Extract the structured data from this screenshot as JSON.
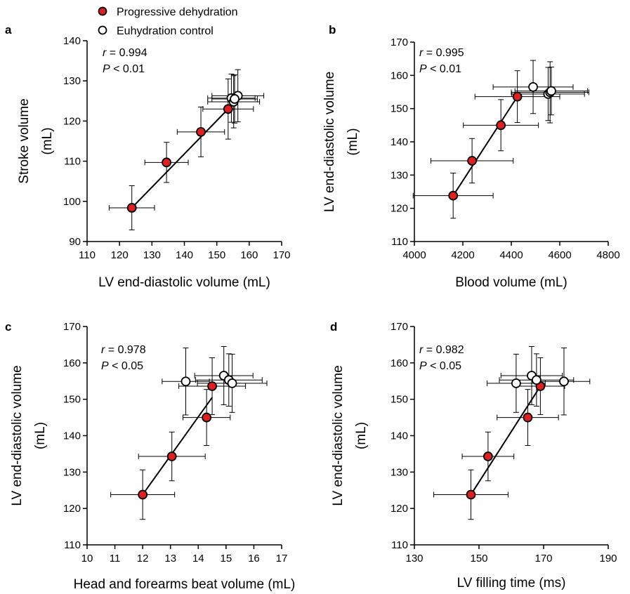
{
  "legend": [
    {
      "label": "Progressive dehydration",
      "marker": "filled",
      "color": "#e02020"
    },
    {
      "label": "Euhydration control",
      "marker": "open",
      "color": "#ffffff"
    }
  ],
  "chart_data": [
    {
      "type": "scatter",
      "panel": "a",
      "xlabel": "LV end-diastolic volume (mL)",
      "ylabel": [
        "Stroke volume",
        "(mL)"
      ],
      "xlim": [
        110,
        170
      ],
      "ylim": [
        90,
        140
      ],
      "xticks": [
        110,
        120,
        130,
        140,
        150,
        160,
        170
      ],
      "yticks": [
        90,
        100,
        110,
        120,
        130,
        140
      ],
      "stat_r": "r = 0.994",
      "stat_p": "P < 0.01",
      "fit": [
        [
          123.8,
          98.4
        ],
        [
          153.5,
          123
        ]
      ],
      "series": [
        {
          "name": "Progressive dehydration",
          "points": [
            {
              "x": 123.8,
              "y": 98.4,
              "xerr": 7,
              "yerr": 5.5
            },
            {
              "x": 134.5,
              "y": 109.7,
              "xerr": 6.7,
              "yerr": 5
            },
            {
              "x": 145.1,
              "y": 117.3,
              "xerr": 7.3,
              "yerr": 6.2
            },
            {
              "x": 153.5,
              "y": 123,
              "xerr": 7.8,
              "yerr": 7.5
            }
          ]
        },
        {
          "name": "Euhydration control",
          "points": [
            {
              "x": 154.5,
              "y": 125.7,
              "xerr": 7.3,
              "yerr": 6
            },
            {
              "x": 155.2,
              "y": 124.8,
              "xerr": 8,
              "yerr": 6.5
            },
            {
              "x": 156.5,
              "y": 126.3,
              "xerr": 8,
              "yerr": 6.5
            },
            {
              "x": 155.5,
              "y": 125.5,
              "xerr": 7,
              "yerr": 6
            }
          ]
        }
      ]
    },
    {
      "type": "scatter",
      "panel": "b",
      "xlabel": "Blood volume (mL)",
      "ylabel": [
        "LV end-diastolic volume",
        "(mL)"
      ],
      "xlim": [
        4000,
        4800
      ],
      "ylim": [
        110,
        170
      ],
      "xticks": [
        4000,
        4200,
        4400,
        4600,
        4800
      ],
      "yticks": [
        110,
        120,
        130,
        140,
        150,
        160,
        170
      ],
      "stat_r": "r = 0.995",
      "stat_p": "P < 0.01",
      "fit": [
        [
          4160,
          123.8
        ],
        [
          4425,
          153.6
        ]
      ],
      "series": [
        {
          "name": "Progressive dehydration",
          "points": [
            {
              "x": 4160,
              "y": 123.8,
              "xerr": 165,
              "yerr": 6.8
            },
            {
              "x": 4238,
              "y": 134.3,
              "xerr": 170,
              "yerr": 6.7
            },
            {
              "x": 4357,
              "y": 145,
              "xerr": 155,
              "yerr": 7.7
            },
            {
              "x": 4425,
              "y": 153.6,
              "xerr": 175,
              "yerr": 7.8
            }
          ]
        },
        {
          "name": "Euhydration control",
          "points": [
            {
              "x": 4490,
              "y": 156.5,
              "xerr": 165,
              "yerr": 8
            },
            {
              "x": 4552,
              "y": 154.4,
              "xerr": 150,
              "yerr": 8
            },
            {
              "x": 4560,
              "y": 154.9,
              "xerr": 160,
              "yerr": 9.2
            },
            {
              "x": 4565,
              "y": 155.3,
              "xerr": 150,
              "yerr": 7.2
            }
          ]
        }
      ]
    },
    {
      "type": "scatter",
      "panel": "c",
      "xlabel": "Head and forearms beat volume (mL)",
      "ylabel": [
        "LV end-diastolic volume",
        "(mL)"
      ],
      "xlim": [
        10,
        17
      ],
      "ylim": [
        110,
        170
      ],
      "xticks": [
        10,
        11,
        12,
        13,
        14,
        15,
        16,
        17
      ],
      "yticks": [
        110,
        120,
        130,
        140,
        150,
        160,
        170
      ],
      "stat_r": "r = 0.978",
      "stat_p": "P < 0.05",
      "fit": [
        [
          12,
          123.8
        ],
        [
          14.5,
          150.5
        ]
      ],
      "series": [
        {
          "name": "Progressive dehydration",
          "points": [
            {
              "x": 12,
              "y": 123.8,
              "xerr": 1.15,
              "yerr": 6.8
            },
            {
              "x": 13.05,
              "y": 134.3,
              "xerr": 1.2,
              "yerr": 6.7
            },
            {
              "x": 14.3,
              "y": 145,
              "xerr": 0.85,
              "yerr": 7.7
            },
            {
              "x": 14.5,
              "y": 153.6,
              "xerr": 1.2,
              "yerr": 7.8
            }
          ]
        },
        {
          "name": "Euhydration control",
          "points": [
            {
              "x": 13.55,
              "y": 154.9,
              "xerr": 0.85,
              "yerr": 9.2
            },
            {
              "x": 14.92,
              "y": 156.5,
              "xerr": 1.05,
              "yerr": 8
            },
            {
              "x": 15.1,
              "y": 155.3,
              "xerr": 1.2,
              "yerr": 7.2
            },
            {
              "x": 15.22,
              "y": 154.4,
              "xerr": 1.25,
              "yerr": 8
            }
          ]
        }
      ]
    },
    {
      "type": "scatter",
      "panel": "d",
      "xlabel": "LV filling time (ms)",
      "ylabel": [
        "LV end-diastolic volume",
        "(mL)"
      ],
      "xlim": [
        130,
        190
      ],
      "ylim": [
        110,
        170
      ],
      "xticks": [
        130,
        150,
        170,
        190
      ],
      "yticks": [
        110,
        120,
        130,
        140,
        150,
        160,
        170
      ],
      "stat_r": "r = 0.982",
      "stat_p": "P < 0.05",
      "fit": [
        [
          147.5,
          123.8
        ],
        [
          169,
          153.6
        ]
      ],
      "series": [
        {
          "name": "Progressive dehydration",
          "points": [
            {
              "x": 147.5,
              "y": 123.8,
              "xerr": 11.5,
              "yerr": 6.8
            },
            {
              "x": 152.8,
              "y": 134.3,
              "xerr": 8,
              "yerr": 6.7
            },
            {
              "x": 165.1,
              "y": 145,
              "xerr": 9.5,
              "yerr": 7.7
            },
            {
              "x": 169,
              "y": 153.6,
              "xerr": 7.5,
              "yerr": 7.8
            }
          ]
        },
        {
          "name": "Euhydration control",
          "points": [
            {
              "x": 161.5,
              "y": 154.4,
              "xerr": 9,
              "yerr": 8
            },
            {
              "x": 166.3,
              "y": 156.5,
              "xerr": 9.5,
              "yerr": 8
            },
            {
              "x": 167.8,
              "y": 155.3,
              "xerr": 11.5,
              "yerr": 7.2
            },
            {
              "x": 176.3,
              "y": 154.9,
              "xerr": 8,
              "yerr": 9.2
            }
          ]
        }
      ]
    }
  ]
}
